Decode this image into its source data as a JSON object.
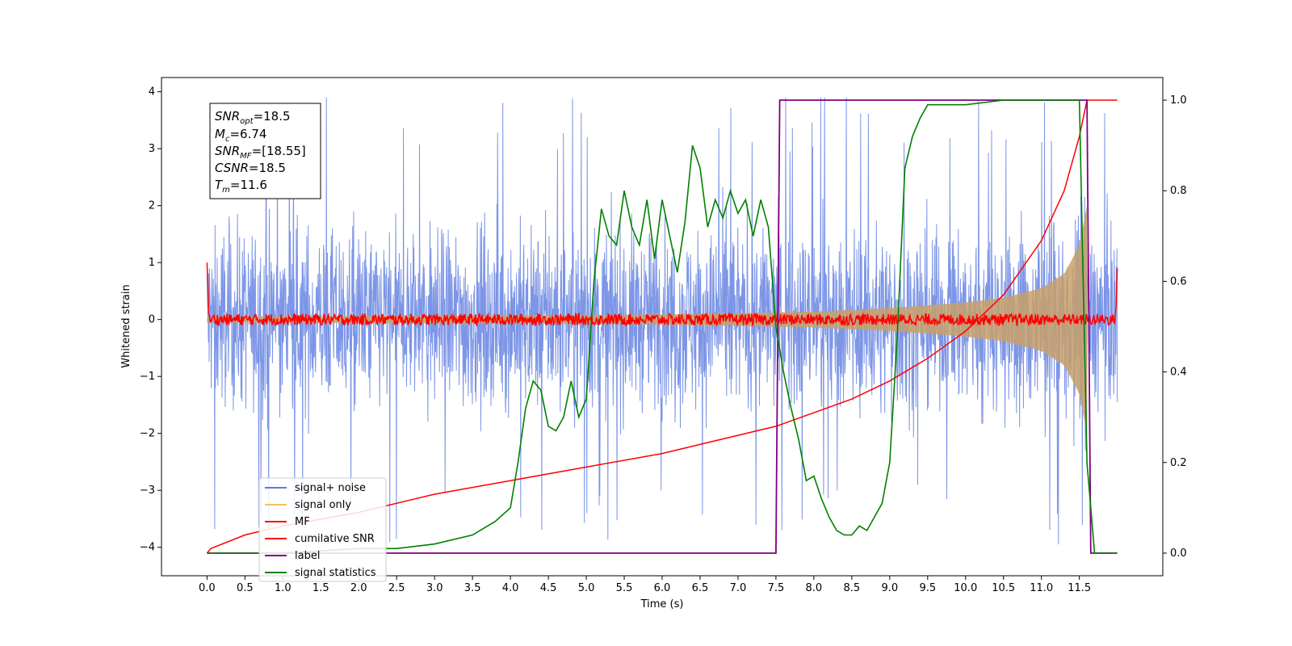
{
  "chart_data": {
    "type": "line",
    "xlabel": "Time (s)",
    "ylabel": "Whitened strain",
    "xlim": [
      -0.6,
      12.6
    ],
    "ylim_left": [
      -4.5,
      4.25
    ],
    "ylim_right": [
      -0.05,
      1.05
    ],
    "x_ticks": [
      "0.0",
      "0.5",
      "1.0",
      "1.5",
      "2.0",
      "2.5",
      "3.0",
      "3.5",
      "4.0",
      "4.5",
      "5.0",
      "5.5",
      "6.0",
      "6.5",
      "7.0",
      "7.5",
      "8.0",
      "8.5",
      "9.0",
      "9.5",
      "10.0",
      "10.5",
      "11.0",
      "11.5"
    ],
    "y_ticks_left": [
      "−4",
      "−3",
      "−2",
      "−1",
      "0",
      "1",
      "2",
      "3",
      "4"
    ],
    "y_ticks_right": [
      "0.0",
      "0.2",
      "0.4",
      "0.6",
      "0.8",
      "1.0"
    ],
    "annotation": {
      "snr_opt": "18.5",
      "mc": "6.74",
      "snr_mf": "[18.55]",
      "csnr": "18.5",
      "tm": "11.6"
    },
    "legend": [
      {
        "name": "signal+ noise",
        "color": "#5b7be0"
      },
      {
        "name": "signal only",
        "color": "#f5c060"
      },
      {
        "name": "MF",
        "color": "#ff0000"
      },
      {
        "name": "cumilative SNR",
        "color": "#ff0000"
      },
      {
        "name": "label",
        "color": "#800080"
      },
      {
        "name": "signal statistics",
        "color": "#008000"
      }
    ],
    "series": [
      {
        "name": "signal+ noise",
        "axis": "left",
        "description_range": [
          -4.2,
          3.9
        ],
        "x_range": [
          0.0,
          12.0
        ]
      },
      {
        "name": "signal only",
        "axis": "left",
        "envelope": {
          "x": [
            0.0,
            2.0,
            4.0,
            6.0,
            7.0,
            8.0,
            9.0,
            10.0,
            10.5,
            11.0,
            11.3,
            11.5,
            11.6
          ],
          "amp": [
            0.05,
            0.06,
            0.07,
            0.09,
            0.11,
            0.14,
            0.2,
            0.3,
            0.38,
            0.55,
            0.8,
            1.3,
            2.0
          ]
        }
      },
      {
        "name": "MF",
        "axis": "left",
        "x_range": [
          0.0,
          12.0
        ],
        "level": 0.0
      },
      {
        "name": "cumilative SNR",
        "axis": "right",
        "x": [
          0.0,
          0.05,
          0.5,
          1.0,
          2.0,
          3.0,
          4.0,
          5.0,
          6.0,
          7.0,
          7.5,
          8.0,
          8.5,
          9.0,
          9.5,
          10.0,
          10.5,
          11.0,
          11.3,
          11.5,
          11.6,
          12.0
        ],
        "y": [
          0.0,
          0.01,
          0.04,
          0.06,
          0.09,
          0.13,
          0.16,
          0.19,
          0.22,
          0.26,
          0.28,
          0.31,
          0.34,
          0.38,
          0.43,
          0.49,
          0.57,
          0.69,
          0.8,
          0.92,
          1.0,
          1.0
        ]
      },
      {
        "name": "label",
        "axis": "right",
        "x": [
          0.0,
          7.5,
          7.55,
          11.6,
          11.65,
          12.0
        ],
        "y": [
          0.0,
          0.0,
          1.0,
          1.0,
          0.0,
          0.0
        ]
      },
      {
        "name": "signal statistics",
        "axis": "right",
        "x": [
          0.0,
          1.0,
          2.0,
          2.5,
          3.0,
          3.5,
          3.8,
          4.0,
          4.1,
          4.2,
          4.3,
          4.4,
          4.5,
          4.6,
          4.7,
          4.8,
          4.9,
          5.0,
          5.1,
          5.2,
          5.3,
          5.4,
          5.5,
          5.6,
          5.7,
          5.8,
          5.9,
          6.0,
          6.1,
          6.2,
          6.3,
          6.4,
          6.5,
          6.6,
          6.7,
          6.8,
          6.9,
          7.0,
          7.1,
          7.2,
          7.3,
          7.4,
          7.5,
          7.6,
          7.7,
          7.8,
          7.9,
          8.0,
          8.1,
          8.2,
          8.3,
          8.4,
          8.5,
          8.6,
          8.7,
          8.8,
          8.9,
          9.0,
          9.1,
          9.2,
          9.3,
          9.4,
          9.5,
          10.0,
          10.5,
          11.0,
          11.5,
          11.6,
          11.7,
          12.0
        ],
        "y": [
          0.0,
          0.0,
          0.01,
          0.01,
          0.02,
          0.04,
          0.07,
          0.1,
          0.2,
          0.32,
          0.38,
          0.36,
          0.28,
          0.27,
          0.3,
          0.38,
          0.3,
          0.34,
          0.6,
          0.76,
          0.7,
          0.68,
          0.8,
          0.72,
          0.68,
          0.78,
          0.65,
          0.78,
          0.7,
          0.62,
          0.73,
          0.9,
          0.85,
          0.72,
          0.78,
          0.74,
          0.8,
          0.75,
          0.78,
          0.7,
          0.78,
          0.72,
          0.5,
          0.4,
          0.32,
          0.25,
          0.16,
          0.17,
          0.12,
          0.08,
          0.05,
          0.04,
          0.04,
          0.06,
          0.05,
          0.08,
          0.11,
          0.2,
          0.48,
          0.85,
          0.92,
          0.96,
          0.99,
          0.99,
          1.0,
          1.0,
          1.0,
          0.2,
          0.0,
          0.0
        ]
      }
    ]
  }
}
